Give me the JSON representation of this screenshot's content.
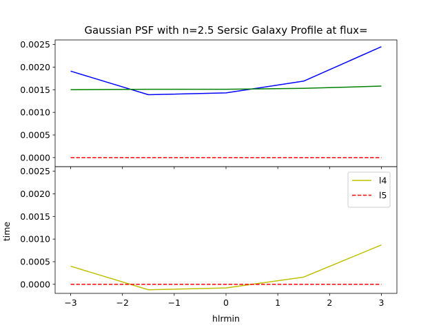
{
  "chart_data": [
    {
      "type": "line",
      "panel": "top",
      "title": "Gaussian PSF with n=2.5 Sersic Galaxy Profile at flux=",
      "xlabel": "",
      "ylabel": "",
      "xlim": [
        -3.3,
        3.3
      ],
      "ylim": [
        -0.0002,
        0.0026
      ],
      "xticks": [
        -3,
        -2,
        -1,
        0,
        1,
        2,
        3
      ],
      "xtick_labels_shown": false,
      "yticks": [
        0.0,
        0.0005,
        0.001,
        0.0015,
        0.002,
        0.0025
      ],
      "ytick_labels": [
        "0.0000",
        "0.0005",
        "0.0010",
        "0.0015",
        "0.0020",
        "0.0025"
      ],
      "grid": false,
      "series": [
        {
          "color": "#0000ff",
          "dash": "solid",
          "x": [
            -3,
            -1.5,
            0,
            1.5,
            3
          ],
          "y": [
            0.00191,
            0.00139,
            0.00143,
            0.00169,
            0.00245
          ]
        },
        {
          "color": "#008000",
          "dash": "solid",
          "x": [
            -3,
            -1.5,
            0,
            1.5,
            3
          ],
          "y": [
            0.0015,
            0.00151,
            0.00151,
            0.00153,
            0.00158
          ]
        },
        {
          "color": "#ff0000",
          "dash": "dashed",
          "x": [
            -3,
            -1.5,
            0,
            1.5,
            3
          ],
          "y": [
            0.0,
            0.0,
            0.0,
            0.0,
            0.0
          ]
        }
      ]
    },
    {
      "type": "line",
      "panel": "bottom",
      "title": "",
      "xlabel": "hlrmin",
      "ylabel": "time",
      "xlim": [
        -3.3,
        3.3
      ],
      "ylim": [
        -0.0002,
        0.0026
      ],
      "xticks": [
        -3,
        -2,
        -1,
        0,
        1,
        2,
        3
      ],
      "xtick_labels": [
        "−3",
        "−2",
        "−1",
        "0",
        "1",
        "2",
        "3"
      ],
      "yticks": [
        0.0,
        0.0005,
        0.001,
        0.0015,
        0.002,
        0.0025
      ],
      "ytick_labels": [
        "0.0000",
        "0.0005",
        "0.0010",
        "0.0015",
        "0.0020",
        "0.0025"
      ],
      "grid": false,
      "legend": {
        "placement": "top-right",
        "entries": [
          "l4",
          "l5"
        ]
      },
      "series": [
        {
          "name": "l4",
          "color": "#bfbf00",
          "dash": "solid",
          "x": [
            -3,
            -1.5,
            0,
            1.5,
            3
          ],
          "y": [
            0.0004,
            -0.00012,
            -8e-05,
            0.00016,
            0.00087
          ]
        },
        {
          "name": "l5",
          "color": "#ff0000",
          "dash": "dashed",
          "x": [
            -3,
            -1.5,
            0,
            1.5,
            3
          ],
          "y": [
            0.0,
            0.0,
            0.0,
            0.0,
            0.0
          ]
        }
      ]
    }
  ]
}
